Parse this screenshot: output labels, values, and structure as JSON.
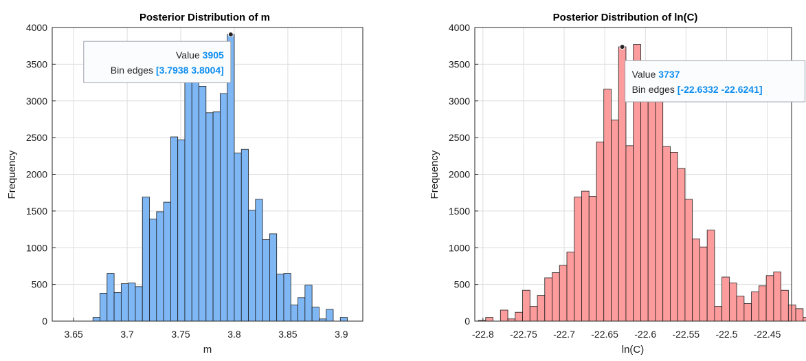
{
  "chart_data": [
    {
      "type": "bar",
      "title": "Posterior Distribution of m",
      "xlabel": "m",
      "ylabel": "Frequency",
      "xlim": [
        3.63,
        3.92
      ],
      "ylim": [
        0,
        4000
      ],
      "xticks": [
        "3.65",
        "3.7",
        "3.75",
        "3.8",
        "3.85",
        "3.9"
      ],
      "yticks": [
        "0",
        "500",
        "1000",
        "1500",
        "2000",
        "2500",
        "3000",
        "3500",
        "4000"
      ],
      "grid": true,
      "bin_start": 3.668,
      "bin_width": 0.0066,
      "values": [
        50,
        380,
        650,
        390,
        510,
        520,
        470,
        1690,
        1390,
        1490,
        1620,
        2510,
        2470,
        3560,
        3260,
        3200,
        2840,
        2850,
        3100,
        3905,
        2290,
        2340,
        1510,
        1660,
        1110,
        1190,
        640,
        650,
        220,
        320,
        490,
        190,
        30,
        160,
        0,
        50
      ],
      "bar_color": "#7fb7f5",
      "tooltip": {
        "value_label": "Value",
        "value": "3905",
        "edges_label": "Bin edges",
        "edges": "[3.7938 3.8004]",
        "bin_index": 19
      }
    },
    {
      "type": "bar",
      "title": "Posterior Distribution of ln(C)",
      "xlabel": "ln(C)",
      "ylabel": "Frequency",
      "xlim": [
        -22.81,
        -22.42
      ],
      "ylim": [
        0,
        4000
      ],
      "xticks": [
        "-22.8",
        "-22.75",
        "-22.7",
        "-22.65",
        "-22.6",
        "-22.55",
        "-22.5",
        "-22.45"
      ],
      "yticks": [
        "0",
        "500",
        "1000",
        "1500",
        "2000",
        "2500",
        "3000",
        "3500",
        "4000"
      ],
      "grid": true,
      "bin_start": -22.80571,
      "bin_width": 0.00909,
      "values": [
        10,
        50,
        0,
        150,
        30,
        120,
        420,
        200,
        350,
        590,
        660,
        760,
        940,
        1690,
        1770,
        1700,
        2440,
        3160,
        2740,
        3737,
        2390,
        3770,
        3440,
        3000,
        3020,
        2380,
        2300,
        2080,
        1660,
        1120,
        1010,
        1240,
        200,
        600,
        520,
        340,
        240,
        400,
        480,
        620,
        670,
        420,
        220,
        170,
        50,
        60,
        0,
        0
      ],
      "bar_color": "#fc9c9c",
      "tooltip": {
        "value_label": "Value",
        "value": "3737",
        "edges_label": "Bin edges",
        "edges": "[-22.6332 -22.6241]",
        "bin_index": 19
      }
    }
  ]
}
